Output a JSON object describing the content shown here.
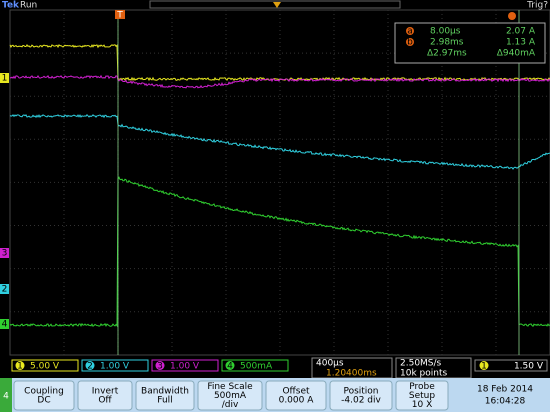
{
  "header": {
    "brand": "Tek",
    "status": "Run",
    "trigger_status": "Trig?",
    "trigger_marker": "T"
  },
  "readout": {
    "a_marker": "a",
    "b_marker": "b",
    "a_time": "8.00µs",
    "a_value": "2.07 A",
    "b_time": "2.98ms",
    "b_value": "1.13 A",
    "delta_time": "Δ2.97ms",
    "delta_value": "Δ940mA"
  },
  "channels": [
    {
      "number": "1",
      "scale": "5.00 V",
      "color": "#e8e820"
    },
    {
      "number": "2",
      "scale": "1.00 V",
      "color": "#30d0e0"
    },
    {
      "number": "3",
      "scale": "1.00 V",
      "color": "#d020d0"
    },
    {
      "number": "4",
      "scale": "500mA",
      "color": "#30d030"
    }
  ],
  "timebase": {
    "scale": "400µs",
    "trigger_position": "1.20400ms",
    "sample_rate": "2.50MS/s",
    "record_length": "10k points"
  },
  "trigger": {
    "channel": "1",
    "level": "1.50 V"
  },
  "menu": {
    "channel": "4",
    "buttons": [
      {
        "label": [
          "Coupling"
        ],
        "value": [
          "DC"
        ]
      },
      {
        "label": [
          "Invert"
        ],
        "value": [
          "Off"
        ]
      },
      {
        "label": [
          "Bandwidth"
        ],
        "value": [
          "Full"
        ]
      },
      {
        "label": [
          "Fine Scale"
        ],
        "value": [
          "500mA",
          "/div"
        ]
      },
      {
        "label": [
          "Offset"
        ],
        "value": [
          "0.000 A"
        ]
      },
      {
        "label": [
          "Position"
        ],
        "value": [
          "-4.02 div"
        ]
      },
      {
        "label": [
          "Probe",
          "Setup"
        ],
        "value": [
          "10 X"
        ]
      }
    ]
  },
  "datetime": {
    "date": "18 Feb 2014",
    "time": "16:04:28"
  }
}
